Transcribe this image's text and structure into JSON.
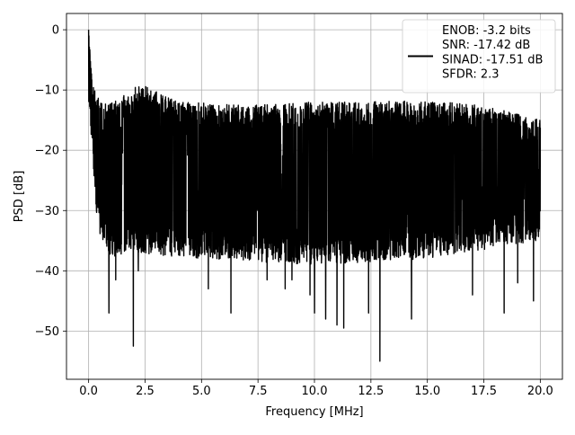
{
  "chart_data": {
    "type": "line",
    "title": "",
    "xlabel": "Frequency [MHz]",
    "ylabel": "PSD [dB]",
    "xlim": [
      -0.98,
      20.98
    ],
    "ylim": [
      -58.0,
      2.7
    ],
    "xticks": [
      0.0,
      2.5,
      5.0,
      7.5,
      10.0,
      12.5,
      15.0,
      17.5,
      20.0
    ],
    "xtick_labels": [
      "0.0",
      "2.5",
      "5.0",
      "7.5",
      "10.0",
      "12.5",
      "15.0",
      "17.5",
      "20.0"
    ],
    "yticks": [
      0,
      -10,
      -20,
      -30,
      -40,
      -50
    ],
    "ytick_labels": [
      "0",
      "−10",
      "−20",
      "−30",
      "−40",
      "−50"
    ],
    "grid": true,
    "legend_position": "top-right",
    "legend": {
      "lines": [
        "ENOB: -3.2 bits",
        "SNR: -17.42 dB",
        "SINAD: -17.51 dB",
        "SFDR: 2.3"
      ]
    },
    "series_color": "#000000",
    "series": [
      {
        "x_range": [
          0.0,
          20.0
        ],
        "n_points": 3000,
        "peak": {
          "x": 0.0,
          "y": 0.0
        },
        "upper_envelope": [
          [
            0.0,
            0.0
          ],
          [
            0.05,
            -3.0
          ],
          [
            0.15,
            -8.0
          ],
          [
            0.35,
            -11.0
          ],
          [
            0.8,
            -12.5
          ],
          [
            2.3,
            -9.0
          ],
          [
            4.0,
            -12.0
          ],
          [
            7.0,
            -12.5
          ],
          [
            10.0,
            -12.0
          ],
          [
            15.0,
            -11.8
          ],
          [
            17.5,
            -12.5
          ],
          [
            20.0,
            -15.0
          ]
        ],
        "lower_envelope": [
          [
            0.0,
            -12.0
          ],
          [
            0.4,
            -33.0
          ],
          [
            1.0,
            -38.0
          ],
          [
            2.0,
            -37.0
          ],
          [
            5.0,
            -38.0
          ],
          [
            10.0,
            -39.0
          ],
          [
            15.0,
            -38.0
          ],
          [
            20.0,
            -35.0
          ]
        ],
        "mean_level": -22.0,
        "deep_dips": [
          [
            0.9,
            -47.0
          ],
          [
            1.2,
            -41.5
          ],
          [
            1.98,
            -52.5
          ],
          [
            2.2,
            -40.0
          ],
          [
            5.3,
            -43.0
          ],
          [
            6.3,
            -47.0
          ],
          [
            7.9,
            -41.5
          ],
          [
            8.7,
            -43.0
          ],
          [
            9.0,
            -41.5
          ],
          [
            9.8,
            -44.0
          ],
          [
            10.0,
            -47.0
          ],
          [
            10.5,
            -48.0
          ],
          [
            11.0,
            -49.0
          ],
          [
            11.3,
            -49.5
          ],
          [
            12.4,
            -47.0
          ],
          [
            12.9,
            -55.0
          ],
          [
            14.3,
            -48.0
          ],
          [
            17.0,
            -44.0
          ],
          [
            18.4,
            -47.0
          ],
          [
            19.0,
            -42.0
          ],
          [
            19.7,
            -45.0
          ]
        ]
      }
    ]
  }
}
